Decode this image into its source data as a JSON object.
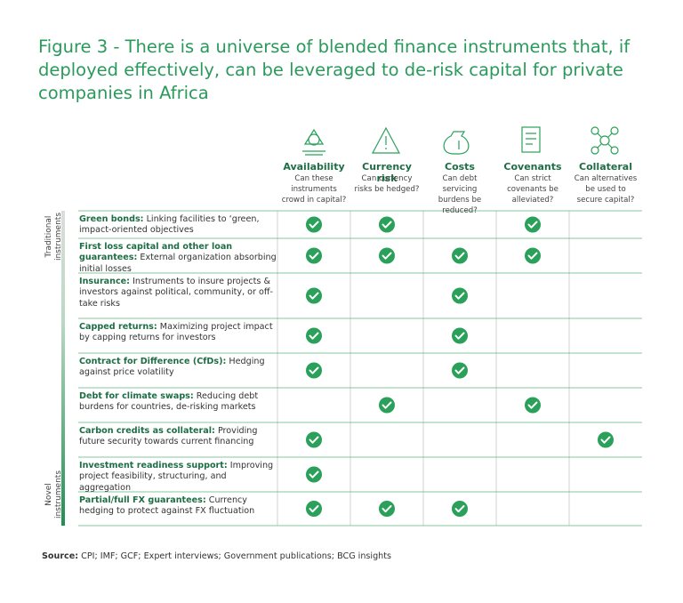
{
  "title": "Figure 3 - There is a universe of blended finance instruments that, if deployed effectively, can be leveraged to de-risk capital for private companies in Africa",
  "columns": [
    {
      "name": "Availability",
      "question": "Can these instruments crowd in capital?"
    },
    {
      "name": "Currency risk",
      "question": "Can currency risks be hedged?"
    },
    {
      "name": "Costs",
      "question": "Can debt servicing burdens be reduced?"
    },
    {
      "name": "Covenants",
      "question": "Can strict covenants be alleviated?"
    },
    {
      "name": "Collateral",
      "question": "Can alternatives be used to secure capital?"
    }
  ],
  "groups": [
    "Traditional instruments",
    "Novel instruments"
  ],
  "rows": [
    {
      "name": "Green bonds:",
      "description": "Linking facilities to ‘green, impact-oriented objectives",
      "checks": [
        true,
        true,
        false,
        true,
        false
      ]
    },
    {
      "name": "First loss capital and other loan guarantees:",
      "description": "External organization absorbing initial losses",
      "checks": [
        true,
        true,
        true,
        true,
        false
      ]
    },
    {
      "name": "Insurance:",
      "description": "Instruments to insure projects & investors against political, community, or off-take risks",
      "checks": [
        true,
        false,
        true,
        false,
        false
      ]
    },
    {
      "name": "Capped returns:",
      "description": "Maximizing project impact by capping returns for investors",
      "checks": [
        true,
        false,
        true,
        false,
        false
      ]
    },
    {
      "name": "Contract for Difference (CfDs):",
      "description": "Hedging against price volatility",
      "checks": [
        true,
        false,
        true,
        false,
        false
      ]
    },
    {
      "name": "Debt for climate swaps:",
      "description": "Reducing debt burdens for countries, de-risking markets",
      "checks": [
        false,
        true,
        false,
        true,
        false
      ]
    },
    {
      "name": "Carbon credits as collateral:",
      "description": "Providing future security towards current financing",
      "checks": [
        true,
        false,
        false,
        false,
        true
      ]
    },
    {
      "name": "Investment readiness support:",
      "description": "Improving project feasibility, structuring, and aggregation",
      "checks": [
        true,
        false,
        false,
        false,
        false
      ]
    },
    {
      "name": "Partial/full FX guarantees:",
      "description": "Currency hedging to protect against FX fluctuation",
      "checks": [
        true,
        true,
        true,
        false,
        false
      ]
    }
  ],
  "source": {
    "label": "Source:",
    "text": "CPI; IMF; GCF; Expert interviews; Government publications; BCG insights"
  }
}
